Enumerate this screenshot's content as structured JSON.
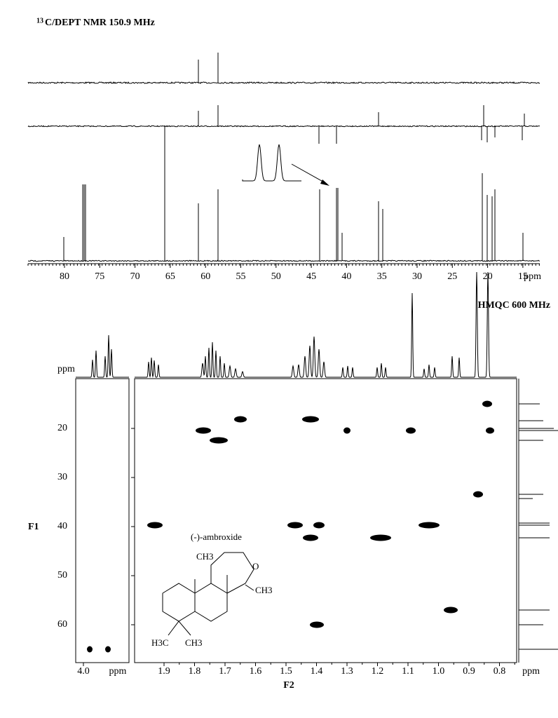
{
  "header": {
    "isotope": "13",
    "title": "C/DEPT NMR 150.9 MHz"
  },
  "carbon_axis": {
    "ticks": [
      "80",
      "75",
      "70",
      "65",
      "60",
      "55",
      "50",
      "45",
      "40",
      "35",
      "30",
      "25",
      "20",
      "15"
    ],
    "unit": "ppm"
  },
  "hmqc": {
    "title": "HMQC 600 MHz",
    "proton_unit": "ppm",
    "f1_label": "F1",
    "f1_ticks": [
      "20",
      "30",
      "40",
      "50",
      "60"
    ],
    "f2_label": "F2",
    "f2_ticks": [
      "1.9",
      "1.8",
      "1.7",
      "1.6",
      "1.5",
      "1.4",
      "1.3",
      "1.2",
      "1.1",
      "1.0",
      "0.9",
      "0.8"
    ],
    "f2_unit": "ppm",
    "left_ticks": [
      "4.0"
    ],
    "left_unit": "ppm"
  },
  "molecule": {
    "name": "(-)-ambroxide",
    "labels": [
      "CH3",
      "O",
      "CH3",
      "H3C",
      "CH3"
    ]
  }
}
